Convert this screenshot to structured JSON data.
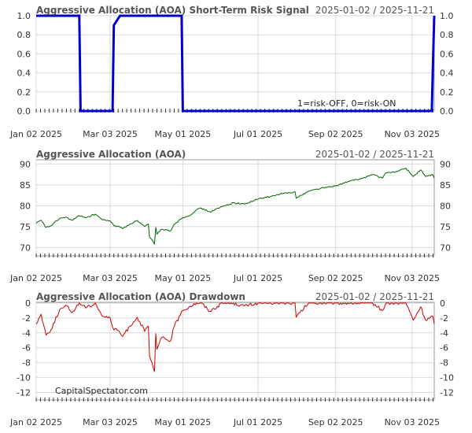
{
  "chart_data": [
    {
      "type": "line",
      "title": "Aggressive Allocation (AOA) Short-Term Risk Signal",
      "date_range": "2025-01-02 / 2025-11-21",
      "annotation": "1=risk-OFF, 0=risk-ON",
      "ylim": [
        0,
        1
      ],
      "yticks": [
        "0.0",
        "0.2",
        "0.4",
        "0.6",
        "0.8",
        "1.0"
      ],
      "xtick_labels": [
        "Jan 02 2025",
        "Mar 03 2025",
        "May 01 2025",
        "Jul 01 2025",
        "Sep 02 2025",
        "Nov 03 2025"
      ],
      "grid": true,
      "color": "#0000cc",
      "series": [
        {
          "x": [
            "2025-01-02",
            "2025-02-06",
            "2025-02-07",
            "2025-03-05",
            "2025-03-06",
            "2025-03-11",
            "2025-04-30",
            "2025-05-01",
            "2025-11-19",
            "2025-11-20",
            "2025-11-21"
          ],
          "values": [
            1,
            1,
            0,
            0,
            0.9,
            1,
            1,
            0,
            0,
            0.5,
            1
          ]
        }
      ]
    },
    {
      "type": "line",
      "title": "Aggressive Allocation (AOA)",
      "date_range": "2025-01-02 / 2025-11-21",
      "ylim": [
        68,
        91
      ],
      "yticks": [
        "70",
        "75",
        "80",
        "85",
        "90"
      ],
      "xtick_labels": [
        "Jan 02 2025",
        "Mar 03 2025",
        "May 01 2025",
        "Jul 01 2025",
        "Sep 02 2025",
        "Nov 03 2025"
      ],
      "grid": true,
      "color": "#006600",
      "series": [
        {
          "x": [
            "2025-01-02",
            "2025-01-06",
            "2025-01-10",
            "2025-01-14",
            "2025-01-21",
            "2025-01-27",
            "2025-01-31",
            "2025-02-06",
            "2025-02-12",
            "2025-02-19",
            "2025-02-25",
            "2025-03-03",
            "2025-03-06",
            "2025-03-10",
            "2025-03-13",
            "2025-03-19",
            "2025-03-25",
            "2025-03-31",
            "2025-04-03",
            "2025-04-04",
            "2025-04-08",
            "2025-04-09",
            "2025-04-10",
            "2025-04-14",
            "2025-04-21",
            "2025-04-24",
            "2025-05-01",
            "2025-05-06",
            "2025-05-12",
            "2025-05-16",
            "2025-05-23",
            "2025-06-02",
            "2025-06-11",
            "2025-06-20",
            "2025-07-01",
            "2025-07-11",
            "2025-07-21",
            "2025-07-31",
            "2025-08-01",
            "2025-08-11",
            "2025-08-21",
            "2025-09-02",
            "2025-09-12",
            "2025-09-22",
            "2025-10-02",
            "2025-10-10",
            "2025-10-13",
            "2025-10-22",
            "2025-10-29",
            "2025-11-04",
            "2025-11-10",
            "2025-11-14",
            "2025-11-20",
            "2025-11-21"
          ],
          "values": [
            75.8,
            76.5,
            74.8,
            75.2,
            77,
            77.2,
            76.5,
            77.6,
            77.2,
            78,
            76.6,
            76.4,
            75.2,
            75.1,
            74.5,
            75.6,
            76.5,
            75,
            75.6,
            72.5,
            70.8,
            74.8,
            73.2,
            74.4,
            74,
            75.6,
            77.2,
            77.6,
            79,
            79.4,
            78.5,
            79.8,
            80.7,
            80.4,
            81.6,
            82.2,
            82.9,
            83.4,
            81.8,
            83.5,
            84.2,
            84.7,
            85.8,
            86.4,
            87.5,
            86.6,
            87.9,
            88.2,
            89,
            87,
            88.6,
            87,
            87.4,
            86.6
          ]
        }
      ]
    },
    {
      "type": "line",
      "title": "Aggressive Allocation (AOA) Drawdown",
      "date_range": "2025-01-02 / 2025-11-21",
      "annotation": "CapitalSpectator.com",
      "ylim": [
        -13,
        0.1
      ],
      "yticks": [
        "-12",
        "-10",
        "-8",
        "-6",
        "-4",
        "-2",
        "0"
      ],
      "xtick_labels": [
        "Jan 02 2025",
        "Mar 03 2025",
        "May 01 2025",
        "Jul 01 2025",
        "Sep 02 2025",
        "Nov 03 2025"
      ],
      "grid": true,
      "color": "#cc0000",
      "series": [
        {
          "x": [
            "2025-01-02",
            "2025-01-06",
            "2025-01-10",
            "2025-01-14",
            "2025-01-21",
            "2025-01-27",
            "2025-01-31",
            "2025-02-06",
            "2025-02-12",
            "2025-02-19",
            "2025-02-25",
            "2025-03-03",
            "2025-03-06",
            "2025-03-10",
            "2025-03-13",
            "2025-03-19",
            "2025-03-25",
            "2025-03-31",
            "2025-04-03",
            "2025-04-04",
            "2025-04-08",
            "2025-04-09",
            "2025-04-10",
            "2025-04-14",
            "2025-04-21",
            "2025-04-24",
            "2025-05-01",
            "2025-05-06",
            "2025-05-12",
            "2025-05-16",
            "2025-05-23",
            "2025-06-02",
            "2025-06-11",
            "2025-06-20",
            "2025-07-01",
            "2025-07-11",
            "2025-07-21",
            "2025-07-31",
            "2025-08-01",
            "2025-08-11",
            "2025-08-21",
            "2025-09-02",
            "2025-09-12",
            "2025-09-22",
            "2025-10-02",
            "2025-10-10",
            "2025-10-13",
            "2025-10-22",
            "2025-10-29",
            "2025-11-04",
            "2025-11-10",
            "2025-11-14",
            "2025-11-20",
            "2025-11-21"
          ],
          "values": [
            -2.8,
            -1.5,
            -4.3,
            -3.6,
            -0.9,
            -0.4,
            -1.3,
            0,
            -0.6,
            0,
            -1.8,
            -2,
            -3.6,
            -3.7,
            -4.5,
            -3.1,
            -1.9,
            -3.8,
            -3.1,
            -7.1,
            -9.2,
            -4.1,
            -6.2,
            -4.6,
            -5.1,
            -3.1,
            -1,
            -0.5,
            0,
            0,
            -1.1,
            0,
            0,
            -0.4,
            0,
            0,
            0,
            0,
            -1.9,
            0,
            0,
            0,
            0,
            0,
            0,
            -1,
            0,
            0,
            0,
            -2.3,
            -0.5,
            -2.3,
            -1.8,
            -2.8
          ]
        }
      ]
    }
  ]
}
